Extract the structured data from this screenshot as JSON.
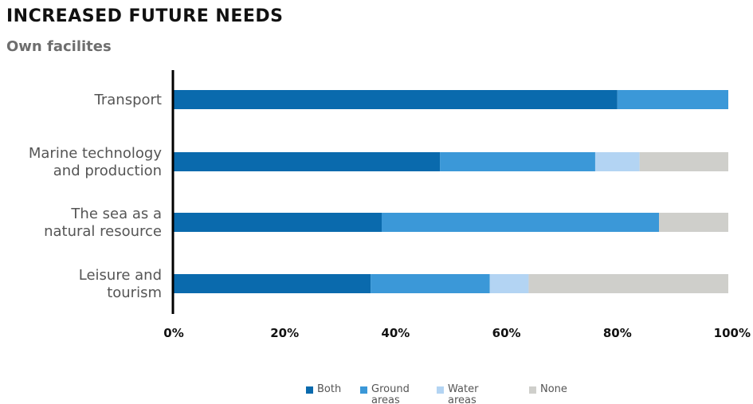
{
  "title": "INCREASED FUTURE NEEDS",
  "subtitle": "Own facilites",
  "chart_data": {
    "type": "bar",
    "orientation": "horizontal",
    "stacked": true,
    "categories": [
      [
        "Transport"
      ],
      [
        "Marine technology",
        "and production"
      ],
      [
        "The sea as a",
        "natural resource"
      ],
      [
        "Leisure and",
        "tourism"
      ]
    ],
    "series": [
      {
        "name": [
          "Both"
        ],
        "color": "#0a6aad",
        "values": [
          80,
          48,
          37.5,
          35.5
        ]
      },
      {
        "name": [
          "Ground",
          "areas"
        ],
        "color": "#3b98d8",
        "values": [
          20,
          28,
          50,
          21.5
        ]
      },
      {
        "name": [
          "Water",
          "areas"
        ],
        "color": "#b3d4f3",
        "values": [
          0,
          8,
          0,
          7
        ]
      },
      {
        "name": [
          "None"
        ],
        "color": "#cfcfcb",
        "values": [
          0,
          16,
          12.5,
          36
        ]
      }
    ],
    "xlim": [
      0,
      100
    ],
    "x_ticks": [
      0,
      20,
      40,
      60,
      80,
      100
    ],
    "x_tick_labels": [
      "0%",
      "20%",
      "40%",
      "60%",
      "80%",
      "100%"
    ],
    "grid": false,
    "legend_position": "bottom"
  }
}
